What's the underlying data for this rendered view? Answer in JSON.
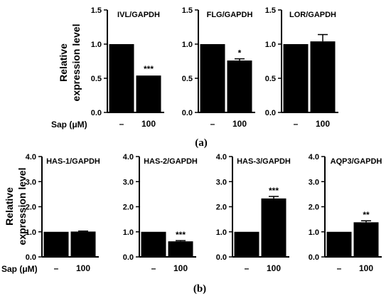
{
  "chart_data": [
    {
      "panel": "a",
      "type": "bar",
      "title": "IVL/GAPDH",
      "categories": [
        "–",
        "100"
      ],
      "values": [
        1.0,
        0.54
      ],
      "errors": [
        0.005,
        0.01
      ],
      "significance": [
        "",
        "***"
      ],
      "ylim": [
        0,
        1.5
      ],
      "yticks": [
        "0.0",
        "0.5",
        "1.0",
        "1.5"
      ]
    },
    {
      "panel": "a",
      "type": "bar",
      "title": "FLG/GAPDH",
      "categories": [
        "–",
        "100"
      ],
      "values": [
        1.0,
        0.76
      ],
      "errors": [
        0.005,
        0.025
      ],
      "significance": [
        "",
        "*"
      ],
      "ylim": [
        0,
        1.5
      ],
      "yticks": [
        "0.0",
        "0.5",
        "1.0",
        "1.5"
      ]
    },
    {
      "panel": "a",
      "type": "bar",
      "title": "LOR/GAPDH",
      "categories": [
        "–",
        "100"
      ],
      "values": [
        1.0,
        1.04
      ],
      "errors": [
        0.005,
        0.1
      ],
      "significance": [
        "",
        ""
      ],
      "ylim": [
        0,
        1.5
      ],
      "yticks": [
        "0.0",
        "0.5",
        "1.0",
        "1.5"
      ]
    },
    {
      "panel": "b",
      "type": "bar",
      "title": "HAS-1/GAPDH",
      "categories": [
        "–",
        "100"
      ],
      "values": [
        1.0,
        1.01
      ],
      "errors": [
        0.005,
        0.02
      ],
      "significance": [
        "",
        ""
      ],
      "ylim": [
        0,
        4.0
      ],
      "yticks": [
        "0.0",
        "1.0",
        "2.0",
        "3.0",
        "4.0"
      ]
    },
    {
      "panel": "b",
      "type": "bar",
      "title": "HAS-2/GAPDH",
      "categories": [
        "–",
        "100"
      ],
      "values": [
        1.0,
        0.62
      ],
      "errors": [
        0.005,
        0.03
      ],
      "significance": [
        "",
        "***"
      ],
      "ylim": [
        0,
        4.0
      ],
      "yticks": [
        "0.0",
        "1.0",
        "2.0",
        "3.0",
        "4.0"
      ]
    },
    {
      "panel": "b",
      "type": "bar",
      "title": "HAS-3/GAPDH",
      "categories": [
        "–",
        "100"
      ],
      "values": [
        1.0,
        2.33
      ],
      "errors": [
        0.005,
        0.08
      ],
      "significance": [
        "",
        "***"
      ],
      "ylim": [
        0,
        4.0
      ],
      "yticks": [
        "0.0",
        "1.0",
        "2.0",
        "3.0",
        "4.0"
      ]
    },
    {
      "panel": "b",
      "type": "bar",
      "title": "AQP3/GAPDH",
      "categories": [
        "–",
        "100"
      ],
      "values": [
        1.0,
        1.38
      ],
      "errors": [
        0.005,
        0.06
      ],
      "significance": [
        "",
        "**"
      ],
      "ylim": [
        0,
        4.0
      ],
      "yticks": [
        "0.0",
        "1.0",
        "2.0",
        "3.0",
        "4.0"
      ]
    }
  ],
  "panels": {
    "a": {
      "label": "(a)",
      "ylabel_line1": "Relative",
      "ylabel_line2": "expression level",
      "xlabel": "Sap (μM)"
    },
    "b": {
      "label": "(b)",
      "ylabel_line1": "Relative",
      "ylabel_line2": "expression level",
      "xlabel": "Sap (μM)"
    }
  },
  "colors": {
    "bar": "#000000",
    "axis": "#000000",
    "background": "#ffffff"
  }
}
